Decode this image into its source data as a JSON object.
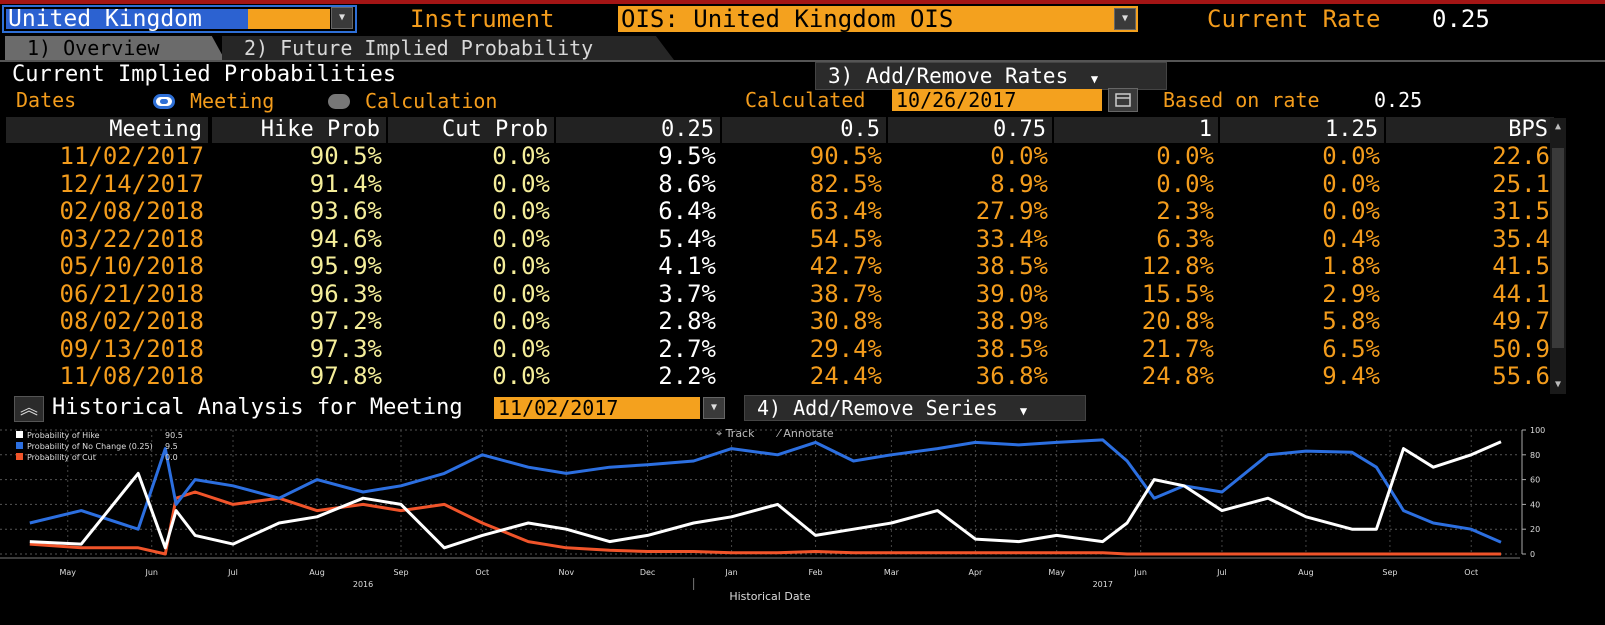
{
  "header": {
    "country_value": "United Kingdom",
    "instrument_label": "Instrument",
    "instrument_value": "OIS: United Kingdom OIS",
    "current_rate_label": "Current Rate",
    "current_rate_value": "0.25"
  },
  "tabs": [
    {
      "label": "1) Overview"
    },
    {
      "label": "2) Future Implied Probability"
    }
  ],
  "overview": {
    "title": "Current Implied Probabilities",
    "add_remove_rates": "3) Add/Remove Rates",
    "dates_label": "Dates",
    "radio_meeting": "Meeting",
    "radio_calculation": "Calculation",
    "calculated_label": "Calculated",
    "calculated_date": "10/26/2017",
    "based_on_label": "Based on rate",
    "based_on_value": "0.25"
  },
  "table": {
    "headers": [
      "Meeting",
      "Hike Prob",
      "Cut Prob",
      "0.25",
      "0.5",
      "0.75",
      "1",
      "1.25",
      "BPS"
    ],
    "rows": [
      [
        "11/02/2017",
        "90.5%",
        "0.0%",
        "9.5%",
        "90.5%",
        "0.0%",
        "0.0%",
        "0.0%",
        "22.6"
      ],
      [
        "12/14/2017",
        "91.4%",
        "0.0%",
        "8.6%",
        "82.5%",
        "8.9%",
        "0.0%",
        "0.0%",
        "25.1"
      ],
      [
        "02/08/2018",
        "93.6%",
        "0.0%",
        "6.4%",
        "63.4%",
        "27.9%",
        "2.3%",
        "0.0%",
        "31.5"
      ],
      [
        "03/22/2018",
        "94.6%",
        "0.0%",
        "5.4%",
        "54.5%",
        "33.4%",
        "6.3%",
        "0.4%",
        "35.4"
      ],
      [
        "05/10/2018",
        "95.9%",
        "0.0%",
        "4.1%",
        "42.7%",
        "38.5%",
        "12.8%",
        "1.8%",
        "41.5"
      ],
      [
        "06/21/2018",
        "96.3%",
        "0.0%",
        "3.7%",
        "38.7%",
        "39.0%",
        "15.5%",
        "2.9%",
        "44.1"
      ],
      [
        "08/02/2018",
        "97.2%",
        "0.0%",
        "2.8%",
        "30.8%",
        "38.9%",
        "20.8%",
        "5.8%",
        "49.7"
      ],
      [
        "09/13/2018",
        "97.3%",
        "0.0%",
        "2.7%",
        "29.4%",
        "38.5%",
        "21.7%",
        "6.5%",
        "50.9"
      ],
      [
        "11/08/2018",
        "97.8%",
        "0.0%",
        "2.2%",
        "24.4%",
        "36.8%",
        "24.8%",
        "9.4%",
        "55.6"
      ]
    ]
  },
  "historical": {
    "title": "Historical Analysis for Meeting",
    "meeting_value": "11/02/2017",
    "add_remove_series": "4) Add/Remove Series",
    "track_label": "Track",
    "annotate_label": "Annotate"
  },
  "colors": {
    "amber": "#f39c1c",
    "blue": "#2c6fe0",
    "red": "#f0542a",
    "white": "#ffffff"
  },
  "chart_data": {
    "type": "line",
    "xlabel": "Historical Date",
    "x_ticks": [
      "May",
      "Jun",
      "Jul",
      "Aug",
      "Sep",
      "Oct",
      "Nov",
      "Dec",
      "Jan",
      "Feb",
      "Mar",
      "Apr",
      "May",
      "Jun",
      "Jul",
      "Aug",
      "Sep",
      "Oct"
    ],
    "year_labels": [
      "2016",
      "2017"
    ],
    "y_ticks": [
      0,
      20,
      40,
      60,
      80,
      100
    ],
    "ylim": [
      0,
      100
    ],
    "legend_position": "top-left",
    "x": [
      "2016-05-01",
      "2016-05-20",
      "2016-06-10",
      "2016-06-20",
      "2016-06-24",
      "2016-07-01",
      "2016-07-15",
      "2016-08-01",
      "2016-08-15",
      "2016-09-01",
      "2016-09-15",
      "2016-10-01",
      "2016-10-15",
      "2016-11-01",
      "2016-11-15",
      "2016-12-01",
      "2016-12-15",
      "2017-01-01",
      "2017-01-15",
      "2017-02-01",
      "2017-02-15",
      "2017-03-01",
      "2017-03-15",
      "2017-04-01",
      "2017-04-15",
      "2017-05-01",
      "2017-05-15",
      "2017-06-01",
      "2017-06-10",
      "2017-06-20",
      "2017-07-01",
      "2017-07-15",
      "2017-08-01",
      "2017-08-15",
      "2017-09-01",
      "2017-09-10",
      "2017-09-20",
      "2017-10-01",
      "2017-10-15",
      "2017-10-26"
    ],
    "series": [
      {
        "name": "Probability of Hike",
        "value_label": "90.5",
        "color": "#ffffff",
        "values": [
          10,
          8,
          65,
          5,
          35,
          15,
          8,
          25,
          30,
          45,
          40,
          5,
          15,
          25,
          20,
          10,
          15,
          25,
          30,
          40,
          15,
          20,
          25,
          35,
          12,
          10,
          15,
          10,
          25,
          60,
          55,
          35,
          45,
          30,
          20,
          20,
          85,
          70,
          80,
          90.5
        ]
      },
      {
        "name": "Probability of No Change (0.25)",
        "value_label": "9.5",
        "color": "#2c6fe0",
        "values": [
          25,
          35,
          20,
          85,
          40,
          60,
          55,
          45,
          60,
          50,
          55,
          65,
          80,
          70,
          65,
          70,
          72,
          75,
          85,
          80,
          90,
          75,
          80,
          85,
          90,
          88,
          90,
          92,
          75,
          45,
          55,
          50,
          80,
          83,
          82,
          70,
          35,
          25,
          20,
          9.5
        ]
      },
      {
        "name": "Probability of Cut",
        "value_label": "0.0",
        "color": "#f0542a",
        "values": [
          8,
          5,
          5,
          0,
          45,
          50,
          40,
          45,
          35,
          40,
          35,
          40,
          25,
          10,
          5,
          3,
          2,
          2,
          1,
          1,
          2,
          1,
          1,
          1,
          1,
          1,
          1,
          1,
          0,
          0,
          0,
          0,
          0,
          0,
          0,
          0,
          0,
          0,
          0,
          0
        ]
      }
    ]
  }
}
